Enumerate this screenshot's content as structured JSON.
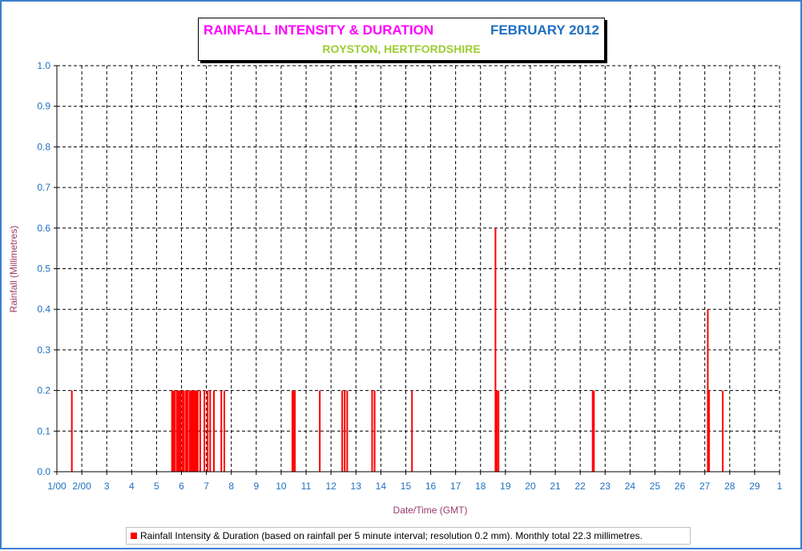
{
  "title": {
    "main": "RAINFALL INTENSITY & DURATION",
    "month": "FEBRUARY 2012",
    "location": "ROYSTON, HERTFORDSHIRE"
  },
  "legend": {
    "label": "Rainfall Intensity & Duration (based on rainfall per 5 minute interval; resolution 0.2 mm). Monthly total 22.3 millimetres."
  },
  "colors": {
    "bar": "#ff0000",
    "title_main": "#ff00ff",
    "title_month": "#1f6fc0",
    "title_location": "#9acd32",
    "tick_labels": "#1f6fc0",
    "axis_titles": "#9b3a6e",
    "frame": "#3c7fd0"
  },
  "chart_data": {
    "type": "bar",
    "title": "RAINFALL INTENSITY & DURATION",
    "xlabel": "Date/Time (GMT)",
    "ylabel": "Rainfall (Millimetres)",
    "xlim": [
      1,
      30
    ],
    "ylim": [
      0,
      1
    ],
    "grid": true,
    "legend_position": "bottom",
    "x_tick_labels": [
      "1/00",
      "2/00",
      "3",
      "4",
      "5",
      "6",
      "7",
      "8",
      "9",
      "10",
      "11",
      "12",
      "13",
      "14",
      "15",
      "16",
      "17",
      "18",
      "19",
      "20",
      "21",
      "22",
      "23",
      "24",
      "25",
      "26",
      "27",
      "28",
      "29",
      "1"
    ],
    "y_tick_labels": [
      "0.0",
      "0.1",
      "0.2",
      "0.3",
      "0.4",
      "0.5",
      "0.6",
      "0.7",
      "0.8",
      "0.9",
      "1.0"
    ],
    "series": [
      {
        "name": "Rainfall Intensity & Duration (based on rainfall per 5 minute interval; resolution 0.2 mm). Monthly total 22.3 millimetres.",
        "points": [
          {
            "x": 1.6,
            "y": 0.2
          },
          {
            "x": 5.62,
            "y": 0.2
          },
          {
            "x": 5.65,
            "y": 0.2
          },
          {
            "x": 5.68,
            "y": 0.2
          },
          {
            "x": 5.71,
            "y": 0.2
          },
          {
            "x": 5.74,
            "y": 0.2
          },
          {
            "x": 5.82,
            "y": 0.2
          },
          {
            "x": 5.87,
            "y": 0.2
          },
          {
            "x": 5.92,
            "y": 0.2
          },
          {
            "x": 5.97,
            "y": 0.2
          },
          {
            "x": 6.05,
            "y": 0.2
          },
          {
            "x": 6.1,
            "y": 0.2
          },
          {
            "x": 6.18,
            "y": 0.2
          },
          {
            "x": 6.24,
            "y": 0.2
          },
          {
            "x": 6.32,
            "y": 0.2
          },
          {
            "x": 6.35,
            "y": 0.2
          },
          {
            "x": 6.38,
            "y": 0.2
          },
          {
            "x": 6.41,
            "y": 0.2
          },
          {
            "x": 6.44,
            "y": 0.2
          },
          {
            "x": 6.47,
            "y": 0.2
          },
          {
            "x": 6.5,
            "y": 0.2
          },
          {
            "x": 6.53,
            "y": 0.2
          },
          {
            "x": 6.56,
            "y": 0.2
          },
          {
            "x": 6.59,
            "y": 0.2
          },
          {
            "x": 6.62,
            "y": 0.2
          },
          {
            "x": 6.65,
            "y": 0.2
          },
          {
            "x": 6.75,
            "y": 0.2
          },
          {
            "x": 6.92,
            "y": 0.2
          },
          {
            "x": 7.05,
            "y": 0.2
          },
          {
            "x": 7.15,
            "y": 0.2
          },
          {
            "x": 7.3,
            "y": 0.2
          },
          {
            "x": 7.6,
            "y": 0.2
          },
          {
            "x": 7.72,
            "y": 0.2
          },
          {
            "x": 10.45,
            "y": 0.2
          },
          {
            "x": 10.5,
            "y": 0.2
          },
          {
            "x": 10.55,
            "y": 0.2
          },
          {
            "x": 11.55,
            "y": 0.2
          },
          {
            "x": 12.45,
            "y": 0.2
          },
          {
            "x": 12.55,
            "y": 0.2
          },
          {
            "x": 12.65,
            "y": 0.2
          },
          {
            "x": 13.65,
            "y": 0.2
          },
          {
            "x": 13.75,
            "y": 0.2
          },
          {
            "x": 15.25,
            "y": 0.2
          },
          {
            "x": 18.6,
            "y": 0.6
          },
          {
            "x": 18.65,
            "y": 0.2
          },
          {
            "x": 18.72,
            "y": 0.2
          },
          {
            "x": 22.5,
            "y": 0.2
          },
          {
            "x": 22.55,
            "y": 0.2
          },
          {
            "x": 27.12,
            "y": 0.4
          },
          {
            "x": 27.17,
            "y": 0.2
          },
          {
            "x": 27.72,
            "y": 0.2
          }
        ]
      }
    ]
  }
}
